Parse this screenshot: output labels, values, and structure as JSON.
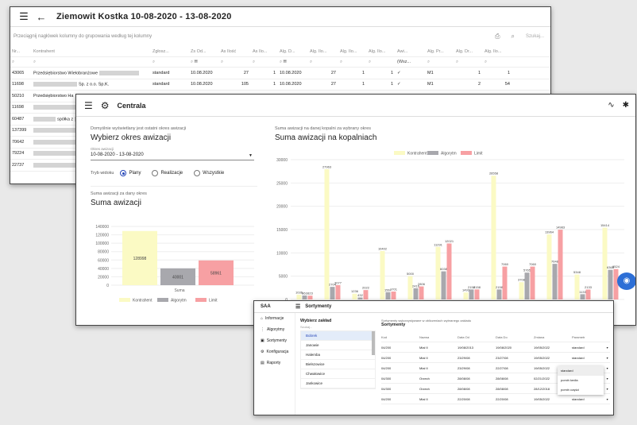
{
  "w1": {
    "title": "Ziemowit Kostka 10-08-2020 - 13-08-2020",
    "group_hint": "Przeciągnij nagłówek kolumny do grupowania według tej kolumny",
    "search_placeholder": "Szukaj...",
    "headers": [
      "Nr...",
      "Kontrahent",
      "Zgłosz...",
      "Zs Od...",
      "As Ilość",
      "As Ilo...",
      "Alg. D...",
      "Alg. Ilo...",
      "Alg. Ilo...",
      "Alg. Ilo...",
      "Awi...",
      "Alg. Pr...",
      "Alg. Dr...",
      "Alg. Ilo..."
    ],
    "filter_select": "(Wsz...",
    "rows": [
      {
        "nr": "43065",
        "kontrahent": "Przedsiębiorstwo Wielobranżowe",
        "zgl": "standard",
        "data": "10.08.2020",
        "v1": "27",
        "v2": "1",
        "data2": "10.08.2020",
        "v3": "27",
        "v4": "1",
        "v5": "1",
        "aw": "✓",
        "pr": "M1",
        "d": "1",
        "last": "1"
      },
      {
        "nr": "11698",
        "kontrahent": "Sp. z o.o. Sp.K.",
        "zgl": "standard",
        "data": "10.08.2020",
        "v1": "105",
        "v2": "1",
        "data2": "10.08.2020",
        "v3": "27",
        "v4": "1",
        "v5": "1",
        "aw": "✓",
        "pr": "M1",
        "d": "2",
        "last": "54"
      },
      {
        "nr": "50210",
        "kontrahent": "Przedsiębiorstwo Ha",
        "zgl": "",
        "data": "",
        "v1": "",
        "v2": "",
        "data2": "",
        "v3": "",
        "v4": "",
        "v5": "",
        "aw": "",
        "pr": "",
        "d": "",
        "last": ""
      },
      {
        "nr": "11698",
        "kontrahent": "",
        "zgl": "",
        "data": "",
        "v1": "",
        "v2": "",
        "data2": "",
        "v3": "",
        "v4": "",
        "v5": "",
        "aw": "",
        "pr": "",
        "d": "",
        "last": ""
      },
      {
        "nr": "60487",
        "kontrahent": "spółka z",
        "zgl": "",
        "data": "",
        "v1": "",
        "v2": "",
        "data2": "",
        "v3": "",
        "v4": "",
        "v5": "",
        "aw": "",
        "pr": "",
        "d": "",
        "last": ""
      },
      {
        "nr": "137399",
        "kontrahent": "",
        "zgl": "",
        "data": "",
        "v1": "",
        "v2": "",
        "data2": "",
        "v3": "",
        "v4": "",
        "v5": "",
        "aw": "",
        "pr": "",
        "d": "",
        "last": ""
      },
      {
        "nr": "70642",
        "kontrahent": "",
        "zgl": "",
        "data": "",
        "v1": "",
        "v2": "",
        "data2": "",
        "v3": "",
        "v4": "",
        "v5": "",
        "aw": "",
        "pr": "",
        "d": "",
        "last": ""
      },
      {
        "nr": "79224",
        "kontrahent": "",
        "zgl": "",
        "data": "",
        "v1": "",
        "v2": "",
        "data2": "",
        "v3": "",
        "v4": "",
        "v5": "",
        "aw": "",
        "pr": "",
        "d": "",
        "last": ""
      },
      {
        "nr": "22737",
        "kontrahent": "",
        "zgl": "",
        "data": "",
        "v1": "",
        "v2": "",
        "data2": "",
        "v3": "",
        "v4": "",
        "v5": "",
        "aw": "",
        "pr": "",
        "d": "",
        "last": ""
      }
    ]
  },
  "w2": {
    "title": "Centrala",
    "period_caption": "Domyślnie wyświetlany jest ostatni okres awizacji",
    "period_title": "Wybierz okres awizacji",
    "select_label": "Okres awizacji",
    "select_value": "10-08-2020 - 13-08-2020",
    "view_label": "Tryb widoku",
    "view_options": [
      "Plany",
      "Realizacje",
      "Wszystkie"
    ],
    "left_chart_caption": "Suma awizacji za dany okres",
    "left_chart_title": "Suma awizacji",
    "right_chart_caption": "Suma awizacji na danej kopalni za wybrany okres",
    "right_chart_title": "Suma awizacji na kopalniach"
  },
  "w3": {
    "app": "SAA",
    "title": "Sortymenty",
    "nav": [
      "Informacje",
      "Algorytmy",
      "Sortymenty",
      "Konfiguracja",
      "Raporty"
    ],
    "list_title": "Wybierz zakład",
    "list_caption": "Szukaj...",
    "list_items": [
      "Bobrek",
      "Janowie",
      "Halemba",
      "Bielszowice",
      "Chwałowice",
      "Jankowice"
    ],
    "main_caption": "Sortymenty wykorzystywane w obliczeniach wybranego zakładu",
    "main_title": "Sortymenty",
    "columns": [
      "Kod",
      "Nazwa",
      "Data Od",
      "Data Do",
      "Zmiana",
      "Parametr"
    ],
    "rows": [
      [
        "04/200",
        "Miał II",
        "19/08/2013",
        "19/08/2020",
        "19/05/2022",
        "standard"
      ],
      [
        "04/200",
        "Miał II",
        "23/29/08",
        "23/27/08",
        "19/05/2022",
        "standard"
      ],
      [
        "04/200",
        "Miał II",
        "23/29/08",
        "22/27/08",
        "19/05/2022",
        "standard"
      ],
      [
        "04/300",
        "Orzech",
        "28/08/08",
        "28/08/08",
        "02/21/2022",
        "standard"
      ],
      [
        "04/300",
        "Orzech",
        "28/08/08",
        "28/08/08",
        "28/12/2018",
        "standard"
      ],
      [
        "04/200",
        "Miał II",
        "22/20/08",
        "22/20/08",
        "19/05/2022",
        "standard"
      ]
    ],
    "dropdown": [
      "standard",
      "pomiń kedla",
      "pomiń części"
    ]
  },
  "chart_data": [
    {
      "type": "bar",
      "title": "Suma awizacji",
      "categories": [
        "Suma"
      ],
      "series": [
        {
          "name": "Kontrahent",
          "values": [
            128998
          ],
          "color": "#fbfac4"
        },
        {
          "name": "Algorytm",
          "values": [
            40001
          ],
          "color": "#a8a8ad"
        },
        {
          "name": "Limit",
          "values": [
            58961
          ],
          "color": "#f7a0a3"
        }
      ],
      "ylim": [
        0,
        140000
      ],
      "yticks": [
        "0",
        "20000",
        "40000",
        "60000",
        "80000",
        "100000",
        "120000",
        "140000"
      ]
    },
    {
      "type": "bar",
      "title": "Suma awizacji na kopalniach",
      "categories": [
        "1",
        "2",
        "3",
        "4",
        "5",
        "6",
        "7",
        "8",
        "9",
        "10",
        "11",
        "12"
      ],
      "series": [
        {
          "name": "Kontrahent",
          "values": [
            1036,
            27963,
            1236,
            10402,
            5000,
            11291,
            1493,
            26558,
            3708,
            13964,
            5348,
            15414
          ],
          "color": "#fbfac4"
        },
        {
          "name": "Algorytm",
          "values": [
            863,
            2704,
            432,
            1567,
            2416,
            6038,
            2158,
            2158,
            5765,
            7648,
            1133,
            6368
          ],
          "color": "#a8a8ad"
        },
        {
          "name": "Limit",
          "values": [
            823,
            3077,
            2022,
            1701,
            2806,
            12021,
            2158,
            7060,
            7060,
            14983,
            2133,
            6524
          ],
          "color": "#f7a0a3"
        }
      ],
      "data_labels": [
        [
          "1036",
          "863",
          "823"
        ],
        [
          "27963",
          "2704",
          "3077"
        ],
        [
          "1236",
          "432",
          "2022"
        ],
        [
          "10402",
          "1567",
          "1701"
        ],
        [
          "5000",
          "2416",
          "2806"
        ],
        [
          "11291",
          "6038",
          "12021"
        ],
        [
          "1493",
          "2158",
          "2158"
        ],
        [
          "26558",
          "2158",
          "7060"
        ],
        [
          "3708",
          "5765",
          "7060"
        ],
        [
          "13964",
          "7648",
          "14983"
        ],
        [
          "5348",
          "1133",
          "2133"
        ],
        [
          "15414",
          "6368",
          "6524"
        ]
      ],
      "ylim": [
        0,
        30000
      ],
      "yticks": [
        "0",
        "5000",
        "10000",
        "15000",
        "20000",
        "25000",
        "30000"
      ]
    }
  ]
}
